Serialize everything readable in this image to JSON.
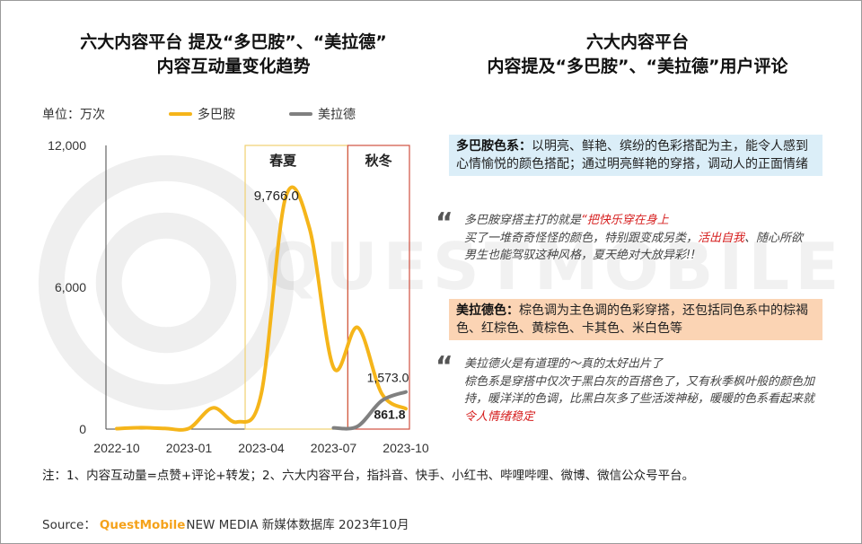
{
  "titles": {
    "left_line1": "六大内容平台 提及“多巴胺”、“美拉德”",
    "left_line2": "内容互动量变化趋势",
    "right_line1": "六大内容平台",
    "right_line2": "内容提及“多巴胺”、“美拉德”用户评论"
  },
  "unit_label": "单位：万次",
  "colors": {
    "dopamine": "#f5b51a",
    "maillard": "#808080",
    "spring_box": "#f0d070",
    "autumn_box": "#d05040",
    "blue_panel": "#dbeef8",
    "orange_panel": "#fbd4b4",
    "highlight": "#d61f1f",
    "brand": "#f5a21a"
  },
  "chart_data": {
    "type": "line",
    "x_ticks": [
      "2022-10",
      "2023-01",
      "2023-04",
      "2023-07",
      "2023-10"
    ],
    "y_ticks": [
      "0",
      "6,000",
      "12,000"
    ],
    "ylim": [
      0,
      12000
    ],
    "x": [
      "2022-10",
      "2022-11",
      "2022-12",
      "2023-01",
      "2023-02",
      "2023-03",
      "2023-04",
      "2023-05",
      "2023-06",
      "2023-07",
      "2023-08",
      "2023-09",
      "2023-10"
    ],
    "series": [
      {
        "name": "多巴胺",
        "values": [
          10,
          60,
          30,
          30,
          900,
          300,
          1500,
          9766,
          8500,
          2600,
          4300,
          1500,
          861.8
        ]
      },
      {
        "name": "美拉德",
        "values": [
          null,
          null,
          null,
          null,
          null,
          null,
          null,
          null,
          null,
          50,
          120,
          1200,
          1573.0
        ]
      }
    ],
    "data_labels": [
      "9,766.0",
      "1,573.0",
      "861.8"
    ],
    "regions": [
      {
        "label": "春夏",
        "from": "2023-03",
        "to": "2023-07"
      },
      {
        "label": "秋冬",
        "from": "2023-08",
        "to": "2023-10"
      }
    ]
  },
  "panels": {
    "dopamine_head": "多巴胺色系：",
    "dopamine_body": "以明亮、鲜艳、缤纷的色彩搭配为主，能令人感到心情愉悦的颜色搭配；通过明亮鲜艳的穿搭，调动人的正面情绪",
    "maillard_head": "美拉德色：",
    "maillard_body": "棕色调为主色调的色彩穿搭，还包括同色系中的棕褐色、红棕色、黄棕色、卡其色、米白色等"
  },
  "quotes": {
    "mark": "“",
    "q1_l1a": "多巴胺穿搭主打的就是",
    "q1_l1b": "“把快乐穿在身上",
    "q1_l2a": "买了一堆奇奇怪怪的颜色，特别跟变成另类，",
    "q1_l2b": "活出自我",
    "q1_l2c": "、随心所欲",
    "q1_l3": "男生也能驾驭这种风格，夏天绝对大放异彩!!",
    "q2_l1": "美拉德火是有道理的～真的太好出片了",
    "q2_l2a": "棕色系是穿搭中仅次于黑白灰的百搭色了，又有秋季枫叶般的颜色加持，暖洋洋的色调，比黑白灰多了些活泼神秘，暖暖的色系看起来就",
    "q2_l2b": "令人情绪稳定"
  },
  "note": "注：1、内容互动量=点赞+评论+转发；2、六大内容平台，指抖音、快手、小红书、哔哩哔哩、微博、微信公众号平台。",
  "source": {
    "prefix": "Source：",
    "brand": "QuestMobile",
    "rest": "NEW MEDIA 新媒体数据库 2023年10月"
  },
  "watermark": "QUESTMOBILE"
}
